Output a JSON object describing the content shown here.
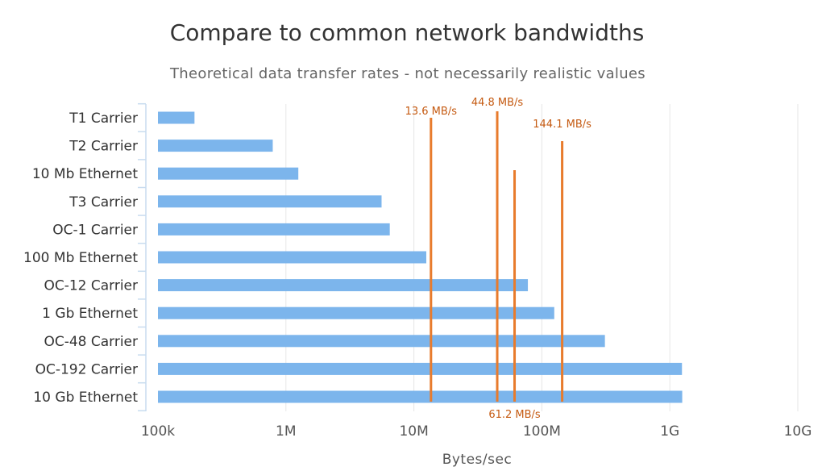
{
  "chart_data": {
    "type": "bar",
    "orientation": "horizontal",
    "title": "Compare to common network bandwidths",
    "subtitle": "Theoretical data transfer rates - not necessarily realistic values",
    "xlabel": "Bytes/sec",
    "ylabel": "",
    "x_scale": "log",
    "xlim": [
      100000,
      10000000000
    ],
    "x_ticks": [
      {
        "value": 100000,
        "label": "100k"
      },
      {
        "value": 1000000,
        "label": "1M"
      },
      {
        "value": 10000000,
        "label": "10M"
      },
      {
        "value": 100000000,
        "label": "100M"
      },
      {
        "value": 1000000000,
        "label": "1G"
      },
      {
        "value": 10000000000,
        "label": "10G"
      }
    ],
    "grid": true,
    "categories": [
      "T1 Carrier",
      "T2 Carrier",
      "10 Mb Ethernet",
      "T3 Carrier",
      "OC-1 Carrier",
      "100 Mb Ethernet",
      "OC-12 Carrier",
      "1 Gb Ethernet",
      "OC-48 Carrier",
      "OC-192 Carrier",
      "10 Gb Ethernet"
    ],
    "values": [
      193000,
      789000,
      1250000,
      5590000,
      6480000,
      12500000,
      77760000,
      125000000,
      311000000,
      1244000000,
      1250000000
    ],
    "reference_lines": [
      {
        "value": 13600000,
        "label": "13.6 MB/s",
        "label_position": "top",
        "top_category": 0
      },
      {
        "value": 44800000,
        "label": "44.8 MB/s",
        "label_position": "top",
        "top_category": 0
      },
      {
        "value": 61200000,
        "label": "61.2 MB/s",
        "label_position": "bottom",
        "top_category": 2
      },
      {
        "value": 144100000,
        "label": "144.1 MB/s",
        "label_position": "top",
        "top_category": 1
      }
    ],
    "colors": {
      "bar": "#7cb5ec",
      "reference_line": "#e87b2c",
      "reference_label": "#c55a11"
    }
  }
}
